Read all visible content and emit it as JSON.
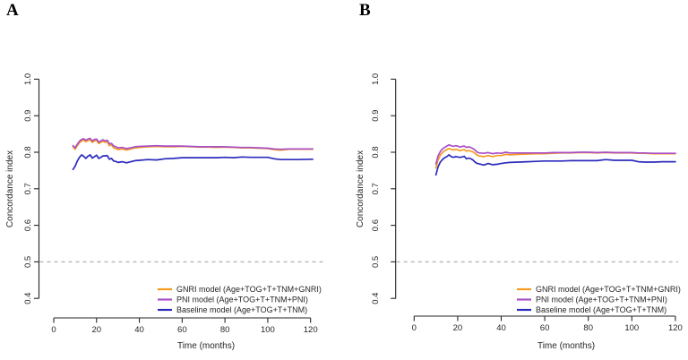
{
  "panels": [
    {
      "label": "A"
    },
    {
      "label": "B"
    }
  ],
  "colors": {
    "gnri": "#f59c20",
    "pni": "#a94fc8",
    "baseline": "#2b2bbd",
    "reference_dashed": "#b4b4b4",
    "axis_text": "#262626"
  },
  "chart_data": [
    {
      "type": "line",
      "panel_label": "A",
      "title": "",
      "xlabel": "Time (months)",
      "ylabel": "Concordance index",
      "xlim": [
        0,
        120
      ],
      "ylim": [
        0.4,
        1.0
      ],
      "xticks": [
        0,
        20,
        40,
        60,
        80,
        100,
        120
      ],
      "yticks": [
        1.0,
        0.9,
        0.8,
        0.7,
        0.6,
        0.5,
        0.4
      ],
      "ytick_labels": [
        "1.0",
        "0.9",
        "0.8",
        "0.7",
        "0.6",
        "0.5",
        "0.4"
      ],
      "grid": false,
      "legend_position": "bottom-right",
      "reference_line": {
        "y": 0.5,
        "style": "dashed",
        "color": "#b4b4b4"
      },
      "series": [
        {
          "name": "GNRI model (Age+TOG+T+TNM+GNRI)",
          "color_key": "gnri",
          "color": "#f59c20",
          "x": [
            9,
            10,
            11,
            12,
            13,
            14,
            15,
            16,
            17,
            18,
            19,
            20,
            21,
            22,
            23,
            24,
            25,
            26,
            27,
            28,
            29,
            30,
            32,
            34,
            36,
            38,
            40,
            44,
            48,
            52,
            56,
            60,
            64,
            68,
            72,
            76,
            80,
            84,
            88,
            92,
            96,
            100,
            103,
            106,
            110,
            114,
            121
          ],
          "values": [
            0.815,
            0.808,
            0.818,
            0.826,
            0.831,
            0.833,
            0.829,
            0.832,
            0.834,
            0.827,
            0.831,
            0.832,
            0.824,
            0.827,
            0.83,
            0.827,
            0.829,
            0.818,
            0.82,
            0.812,
            0.81,
            0.807,
            0.809,
            0.806,
            0.809,
            0.812,
            0.813,
            0.815,
            0.816,
            0.815,
            0.815,
            0.816,
            0.815,
            0.814,
            0.814,
            0.813,
            0.814,
            0.813,
            0.812,
            0.812,
            0.811,
            0.81,
            0.807,
            0.806,
            0.808,
            0.808,
            0.808
          ]
        },
        {
          "name": "PNI model (Age+TOG+T+TNM+PNI)",
          "color_key": "pni",
          "color": "#a94fc8",
          "x": [
            9,
            10,
            11,
            12,
            13,
            14,
            15,
            16,
            17,
            18,
            19,
            20,
            21,
            22,
            23,
            24,
            25,
            26,
            27,
            28,
            29,
            30,
            32,
            34,
            36,
            38,
            40,
            44,
            48,
            52,
            56,
            60,
            64,
            68,
            72,
            76,
            80,
            84,
            88,
            92,
            96,
            100,
            103,
            106,
            110,
            114,
            121
          ],
          "values": [
            0.818,
            0.812,
            0.822,
            0.83,
            0.835,
            0.837,
            0.833,
            0.836,
            0.838,
            0.831,
            0.835,
            0.836,
            0.828,
            0.831,
            0.834,
            0.831,
            0.833,
            0.823,
            0.824,
            0.817,
            0.815,
            0.812,
            0.813,
            0.81,
            0.812,
            0.815,
            0.816,
            0.817,
            0.818,
            0.817,
            0.817,
            0.817,
            0.816,
            0.815,
            0.815,
            0.815,
            0.815,
            0.814,
            0.813,
            0.813,
            0.812,
            0.811,
            0.809,
            0.808,
            0.809,
            0.809,
            0.809
          ]
        },
        {
          "name": "Baseline model (Age+TOG+T+TNM)",
          "color_key": "baseline",
          "color": "#2b2bbd",
          "x": [
            9,
            10,
            11,
            12,
            13,
            14,
            15,
            16,
            17,
            18,
            19,
            20,
            21,
            22,
            23,
            24,
            25,
            26,
            27,
            28,
            29,
            30,
            32,
            34,
            36,
            38,
            40,
            44,
            48,
            52,
            56,
            60,
            64,
            68,
            72,
            76,
            80,
            84,
            88,
            92,
            96,
            100,
            103,
            106,
            110,
            114,
            121
          ],
          "values": [
            0.753,
            0.762,
            0.776,
            0.786,
            0.793,
            0.789,
            0.783,
            0.789,
            0.793,
            0.784,
            0.788,
            0.792,
            0.783,
            0.786,
            0.79,
            0.79,
            0.791,
            0.781,
            0.783,
            0.776,
            0.775,
            0.772,
            0.774,
            0.771,
            0.774,
            0.777,
            0.778,
            0.78,
            0.779,
            0.782,
            0.783,
            0.785,
            0.785,
            0.785,
            0.785,
            0.785,
            0.786,
            0.785,
            0.787,
            0.786,
            0.786,
            0.786,
            0.782,
            0.78,
            0.78,
            0.78,
            0.781
          ]
        }
      ]
    },
    {
      "type": "line",
      "panel_label": "B",
      "title": "",
      "xlabel": "Time (months)",
      "ylabel": "Concordance index",
      "xlim": [
        0,
        120
      ],
      "ylim": [
        0.4,
        1.0
      ],
      "xticks": [
        0,
        20,
        40,
        60,
        80,
        100,
        120
      ],
      "yticks": [
        1.0,
        0.9,
        0.8,
        0.7,
        0.6,
        0.5,
        0.4
      ],
      "ytick_labels": [
        "1.0",
        "0.9",
        "0.8",
        "0.7",
        "0.6",
        "0.5",
        "0.4"
      ],
      "grid": false,
      "legend_position": "bottom-right",
      "reference_line": {
        "y": 0.5,
        "style": "dashed",
        "color": "#b4b4b4"
      },
      "series": [
        {
          "name": "GNRI model (Age+TOG+T+TNM+GNRI)",
          "color_key": "gnri",
          "color": "#f59c20",
          "x": [
            10,
            11,
            12,
            13,
            14,
            15,
            16,
            17,
            18,
            19,
            20,
            21,
            22,
            23,
            24,
            25,
            26,
            27,
            28,
            29,
            30,
            32,
            34,
            36,
            38,
            40,
            42,
            44,
            48,
            52,
            56,
            60,
            64,
            68,
            72,
            76,
            80,
            84,
            88,
            92,
            96,
            100,
            103,
            106,
            110,
            114,
            120
          ],
          "values": [
            0.757,
            0.779,
            0.792,
            0.799,
            0.804,
            0.807,
            0.81,
            0.808,
            0.806,
            0.808,
            0.807,
            0.804,
            0.806,
            0.807,
            0.803,
            0.805,
            0.803,
            0.801,
            0.797,
            0.792,
            0.79,
            0.788,
            0.791,
            0.788,
            0.791,
            0.791,
            0.794,
            0.793,
            0.794,
            0.795,
            0.796,
            0.796,
            0.797,
            0.798,
            0.798,
            0.799,
            0.799,
            0.798,
            0.799,
            0.798,
            0.798,
            0.798,
            0.797,
            0.797,
            0.796,
            0.796,
            0.796
          ]
        },
        {
          "name": "PNI model (Age+TOG+T+TNM+PNI)",
          "color_key": "pni",
          "color": "#a94fc8",
          "x": [
            10,
            11,
            12,
            13,
            14,
            15,
            16,
            17,
            18,
            19,
            20,
            21,
            22,
            23,
            24,
            25,
            26,
            27,
            28,
            29,
            30,
            32,
            34,
            36,
            38,
            40,
            42,
            44,
            48,
            52,
            56,
            60,
            64,
            68,
            72,
            76,
            80,
            84,
            88,
            92,
            96,
            100,
            103,
            106,
            110,
            114,
            120
          ],
          "values": [
            0.768,
            0.79,
            0.802,
            0.809,
            0.813,
            0.817,
            0.82,
            0.818,
            0.816,
            0.818,
            0.817,
            0.814,
            0.816,
            0.817,
            0.813,
            0.815,
            0.813,
            0.81,
            0.806,
            0.8,
            0.798,
            0.797,
            0.799,
            0.796,
            0.798,
            0.797,
            0.8,
            0.798,
            0.798,
            0.798,
            0.798,
            0.798,
            0.799,
            0.799,
            0.799,
            0.8,
            0.8,
            0.799,
            0.8,
            0.799,
            0.799,
            0.799,
            0.798,
            0.798,
            0.797,
            0.797,
            0.797
          ]
        },
        {
          "name": "Baseline model (Age+TOG+T+TNM)",
          "color_key": "baseline",
          "color": "#2b2bbd",
          "x": [
            10,
            11,
            12,
            13,
            14,
            15,
            16,
            17,
            18,
            19,
            20,
            21,
            22,
            23,
            24,
            25,
            26,
            27,
            28,
            29,
            30,
            32,
            34,
            36,
            38,
            40,
            42,
            44,
            48,
            52,
            56,
            60,
            64,
            68,
            72,
            76,
            80,
            84,
            88,
            92,
            96,
            100,
            103,
            106,
            110,
            114,
            120
          ],
          "values": [
            0.738,
            0.76,
            0.773,
            0.78,
            0.785,
            0.788,
            0.793,
            0.788,
            0.786,
            0.788,
            0.787,
            0.786,
            0.787,
            0.789,
            0.782,
            0.784,
            0.782,
            0.779,
            0.773,
            0.769,
            0.768,
            0.765,
            0.769,
            0.766,
            0.767,
            0.769,
            0.771,
            0.772,
            0.773,
            0.774,
            0.775,
            0.776,
            0.776,
            0.776,
            0.777,
            0.777,
            0.777,
            0.777,
            0.78,
            0.778,
            0.778,
            0.778,
            0.774,
            0.773,
            0.773,
            0.774,
            0.774
          ]
        }
      ]
    }
  ]
}
